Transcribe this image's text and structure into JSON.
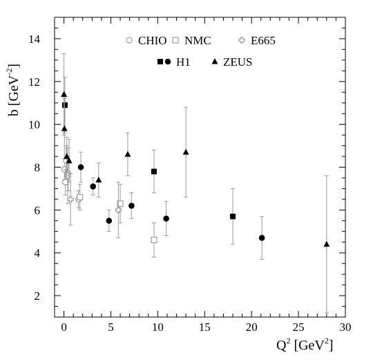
{
  "chart_data": {
    "type": "scatter",
    "xlim": [
      -1,
      30
    ],
    "ylim": [
      1,
      15
    ],
    "xticks": [
      0,
      5,
      10,
      15,
      20,
      25,
      30
    ],
    "yticks": [
      2,
      4,
      6,
      8,
      10,
      12,
      14
    ],
    "xlabel": {
      "base": "Q",
      "sup": "2",
      "unit_pre": " [GeV",
      "unit_sup": "2",
      "unit_post": "]"
    },
    "ylabel": {
      "base": "b  [GeV",
      "sup": "-2",
      "post": "]"
    },
    "legend": {
      "row1": [
        {
          "series": "CHIO",
          "label": "CHIO"
        },
        {
          "series": "NMC",
          "label": "NMC"
        },
        {
          "series": "E665",
          "label": "E665"
        }
      ],
      "row2": [
        {
          "series": "H1",
          "label": "H1"
        },
        {
          "series": "ZEUS",
          "label": "ZEUS"
        }
      ]
    },
    "series": [
      {
        "name": "CHIO",
        "marker": "open-circle",
        "color": "#888888",
        "points": [
          {
            "x": 0.05,
            "y": 7.9,
            "err": 0.5
          },
          {
            "x": 0.15,
            "y": 7.3,
            "err": 0.6
          },
          {
            "x": 0.25,
            "y": 8.3,
            "err": 0.7
          },
          {
            "x": 0.45,
            "y": 7.7,
            "err": 0.8
          },
          {
            "x": 1.55,
            "y": 6.5,
            "err": 0.4
          }
        ]
      },
      {
        "name": "NMC",
        "marker": "open-square",
        "color": "#888888",
        "points": [
          {
            "x": 1.7,
            "y": 6.6,
            "err": 0.6
          },
          {
            "x": 6.0,
            "y": 6.3,
            "err": 0.9
          },
          {
            "x": 9.6,
            "y": 4.6,
            "err": 0.8
          }
        ]
      },
      {
        "name": "E665",
        "marker": "open-cross",
        "color": "#888888",
        "points": [
          {
            "x": 0.4,
            "y": 7.6,
            "err": 1.3
          },
          {
            "x": 0.7,
            "y": 6.5,
            "err": 1.2
          },
          {
            "x": 5.8,
            "y": 6.0,
            "err": 1.3
          }
        ]
      },
      {
        "name": "H1",
        "marker": "filled-square-circle",
        "color": "#000000",
        "points": [
          {
            "x": 0.1,
            "y": 10.9,
            "err": 1.3,
            "shape": "square"
          },
          {
            "x": 9.6,
            "y": 7.8,
            "err": 1.0,
            "shape": "square"
          },
          {
            "x": 18.0,
            "y": 5.7,
            "err": 1.3,
            "shape": "square"
          },
          {
            "x": 1.8,
            "y": 8.0,
            "err": 0.7,
            "shape": "circle"
          },
          {
            "x": 3.1,
            "y": 7.1,
            "err": 0.4,
            "shape": "circle"
          },
          {
            "x": 4.8,
            "y": 5.5,
            "err": 0.5,
            "shape": "circle"
          },
          {
            "x": 7.2,
            "y": 6.2,
            "err": 0.6,
            "shape": "circle"
          },
          {
            "x": 10.9,
            "y": 5.6,
            "err": 0.8,
            "shape": "circle"
          },
          {
            "x": 21.1,
            "y": 4.7,
            "err": 1.0,
            "shape": "circle"
          }
        ]
      },
      {
        "name": "ZEUS",
        "marker": "filled-triangle",
        "color": "#000000",
        "points": [
          {
            "x": 0.0,
            "y": 11.4,
            "err": 1.9
          },
          {
            "x": 0.05,
            "y": 9.8,
            "err": 1.4
          },
          {
            "x": 0.3,
            "y": 8.5,
            "err": 0.9
          },
          {
            "x": 0.55,
            "y": 8.3,
            "err": 1.0
          },
          {
            "x": 3.7,
            "y": 7.4,
            "err": 0.8
          },
          {
            "x": 6.8,
            "y": 8.6,
            "err": 1.0
          },
          {
            "x": 13.0,
            "y": 8.7,
            "err": 2.1
          },
          {
            "x": 28.0,
            "y": 4.4,
            "err": 3.2
          }
        ]
      }
    ]
  }
}
